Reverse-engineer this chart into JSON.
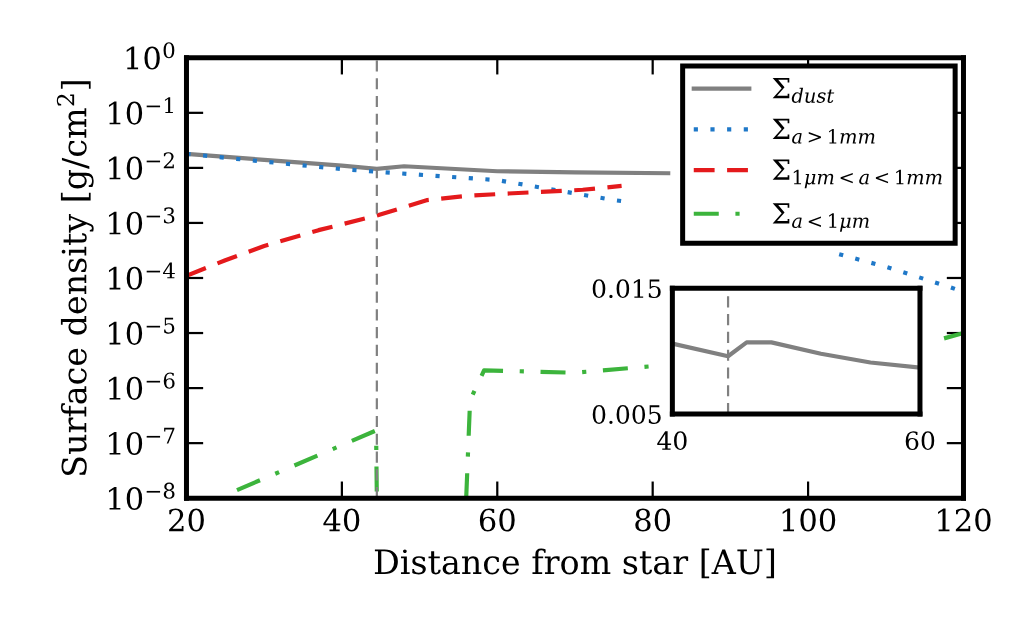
{
  "chart_data": [
    {
      "type": "line",
      "xlabel": "Distance from star [AU]",
      "ylabel": "Surface density [g/cm$^{2}$]",
      "log": "y",
      "xlim": [
        20,
        120
      ],
      "xticks": [
        20,
        40,
        60,
        80,
        100,
        120
      ],
      "ylim": [
        1e-08,
        1
      ],
      "yticks": [
        {
          "value": 1e-08,
          "label": "10$^{−8}$"
        },
        {
          "value": 1e-07,
          "label": "10$^{−7}$"
        },
        {
          "value": 1e-06,
          "label": "10$^{−6}$"
        },
        {
          "value": 1e-05,
          "label": "10$^{−5}$"
        },
        {
          "value": 0.0001,
          "label": "10$^{−4}$"
        },
        {
          "value": 0.001,
          "label": "10$^{−3}$"
        },
        {
          "value": 0.01,
          "label": "10$^{−2}$"
        },
        {
          "value": 0.1,
          "label": "10$^{−1}$"
        },
        {
          "value": 1,
          "label": "10$^{0}$"
        }
      ],
      "grid": false,
      "legend": "top right",
      "marker": "none",
      "ref_lines": [
        {
          "axis": "x",
          "value": 44.5,
          "color": "#808080",
          "line_style": "dashed"
        }
      ],
      "series": [
        {
          "name": "Σ$_{dust}$",
          "color": "#808080",
          "line_style": "solid",
          "x": [
            20,
            30,
            40,
            44.5,
            48,
            60,
            70,
            82
          ],
          "values": [
            0.018,
            0.014,
            0.011,
            0.0096,
            0.0107,
            0.0087,
            0.0083,
            0.008
          ]
        },
        {
          "name": "Σ$_{a>1mm}$",
          "color": "#1f78c8",
          "line_style": "dotted",
          "x": [
            20,
            30,
            40,
            44.5,
            60,
            75,
            76,
            90,
            104,
            110,
            118,
            120
          ],
          "values": [
            0.018,
            0.013,
            0.0095,
            0.0085,
            0.006,
            0.0026,
            0.0025,
            null,
            0.00027,
            0.00016,
            7e-05,
            5.6e-05
          ]
        },
        {
          "name": "Σ$_{1μm<a<1mm}$",
          "color": "#e41a1c",
          "line_style": "dashed",
          "x": [
            20,
            25,
            30,
            37,
            44.4,
            51,
            56,
            61,
            71,
            76
          ],
          "values": [
            0.00011,
            0.00021,
            0.00038,
            0.00074,
            0.00135,
            0.0026,
            0.0031,
            0.0034,
            0.004,
            0.0047
          ]
        },
        {
          "name": "Σ$_{a<1μm}$",
          "color": "#3cb43c",
          "line_style": "dashdot",
          "x": [
            26.5,
            44.4,
            44.5,
            50,
            56,
            56.5,
            58.3,
            70,
            80,
            90,
            117.5,
            120
          ],
          "values": [
            1.4e-08,
            1.7e-07,
            1e-08,
            null,
            1e-08,
            6e-07,
            2.1e-06,
            1.9e-06,
            2.5e-06,
            null,
            8e-06,
            1e-05
          ]
        }
      ]
    },
    {
      "type": "line",
      "xlim": [
        40,
        60
      ],
      "xticks": [
        40,
        60
      ],
      "ylim": [
        0.005,
        0.015
      ],
      "yticks": [
        0.005,
        0.015
      ],
      "grid": false,
      "marker": "none",
      "ref_lines": [
        {
          "axis": "x",
          "value": 44.5,
          "color": "#808080",
          "line_style": "dashed"
        }
      ],
      "series": [
        {
          "color": "#808080",
          "line_style": "solid",
          "x": [
            40,
            44.5,
            46,
            48,
            52,
            56,
            60
          ],
          "values": [
            0.0106,
            0.0096,
            0.0107,
            0.0107,
            0.0098,
            0.0091,
            0.0087
          ]
        }
      ]
    }
  ]
}
